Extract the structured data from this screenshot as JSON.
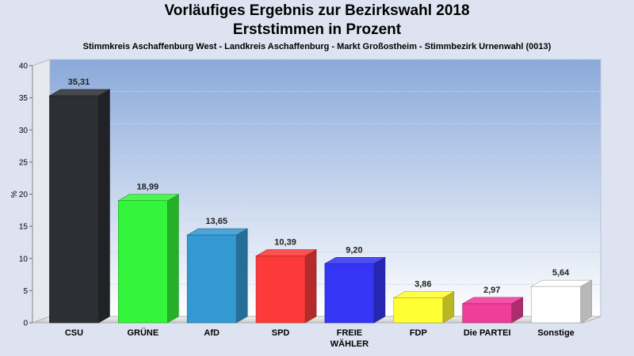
{
  "header": {
    "title_line1": "Vorläufiges Ergebnis zur Bezirkswahl 2018",
    "title_line2": "Erststimmen in Prozent",
    "subtitle": "Stimmkreis Aschaffenburg West - Landkreis Aschaffenburg - Markt Großostheim - Stimmbezirk Urnenwahl (0013)"
  },
  "chart_data": {
    "type": "bar",
    "title": "Vorläufiges Ergebnis zur Bezirkswahl 2018 Erststimmen in Prozent",
    "subtitle": "Stimmkreis Aschaffenburg West - Landkreis Aschaffenburg - Markt Großostheim - Stimmbezirk Urnenwahl (0013)",
    "xlabel": "",
    "ylabel": "%",
    "ylim": [
      0,
      40
    ],
    "yticks": [
      0,
      5,
      10,
      15,
      20,
      25,
      30,
      35,
      40
    ],
    "grid": true,
    "style": "3d",
    "categories": [
      "CSU",
      "GRÜNE",
      "AfD",
      "SPD",
      "FREIE WÄHLER",
      "FDP",
      "Die PARTEI",
      "Sonstige"
    ],
    "category_lines": [
      [
        "CSU"
      ],
      [
        "GRÜNE"
      ],
      [
        "AfD"
      ],
      [
        "SPD"
      ],
      [
        "FREIE",
        "WÄHLER"
      ],
      [
        "FDP"
      ],
      [
        "Die PARTEI"
      ],
      [
        "Sonstige"
      ]
    ],
    "values": [
      35.31,
      18.99,
      13.65,
      10.39,
      9.2,
      3.86,
      2.97,
      5.64
    ],
    "value_labels": [
      "35,31",
      "18,99",
      "13,65",
      "10,39",
      "9,20",
      "3,86",
      "2,97",
      "5,64"
    ],
    "colors": [
      "#2e2f35",
      "#33f53b",
      "#3399d3",
      "#fc3a3a",
      "#3535f5",
      "#ffff33",
      "#f03c9a",
      "#ffffff"
    ]
  }
}
